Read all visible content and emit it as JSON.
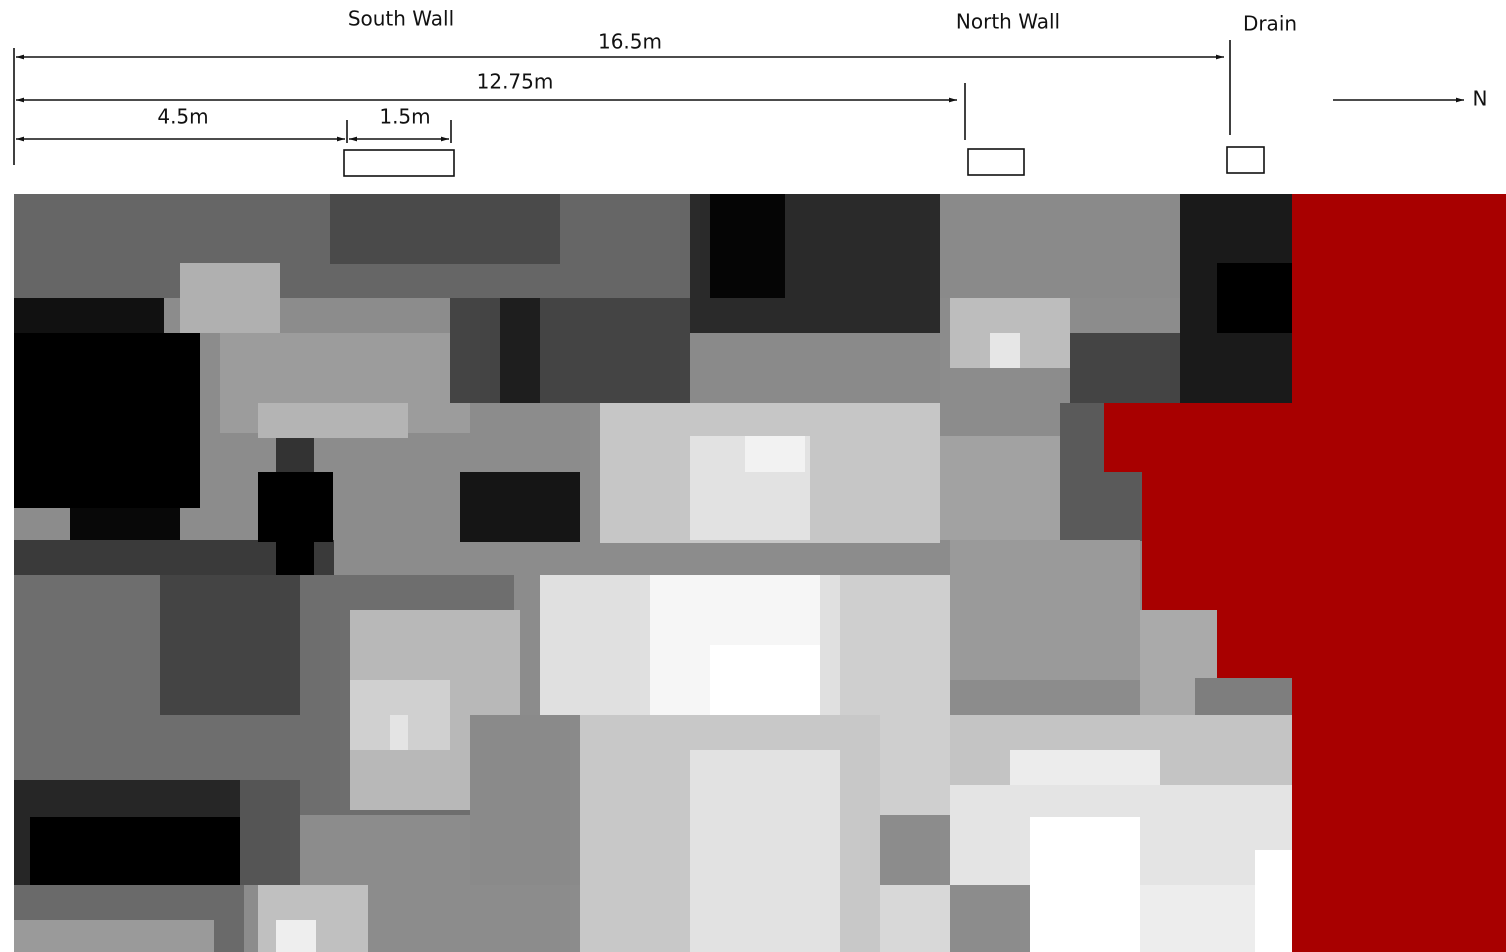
{
  "walls": {
    "south": "South Wall",
    "north": "North Wall",
    "drain": "Drain"
  },
  "dimensions": {
    "total": "16.5m",
    "north_wall": "12.75m",
    "south_wall_offset": "4.5m",
    "south_wall_width": "1.5m"
  },
  "compass": "N"
}
